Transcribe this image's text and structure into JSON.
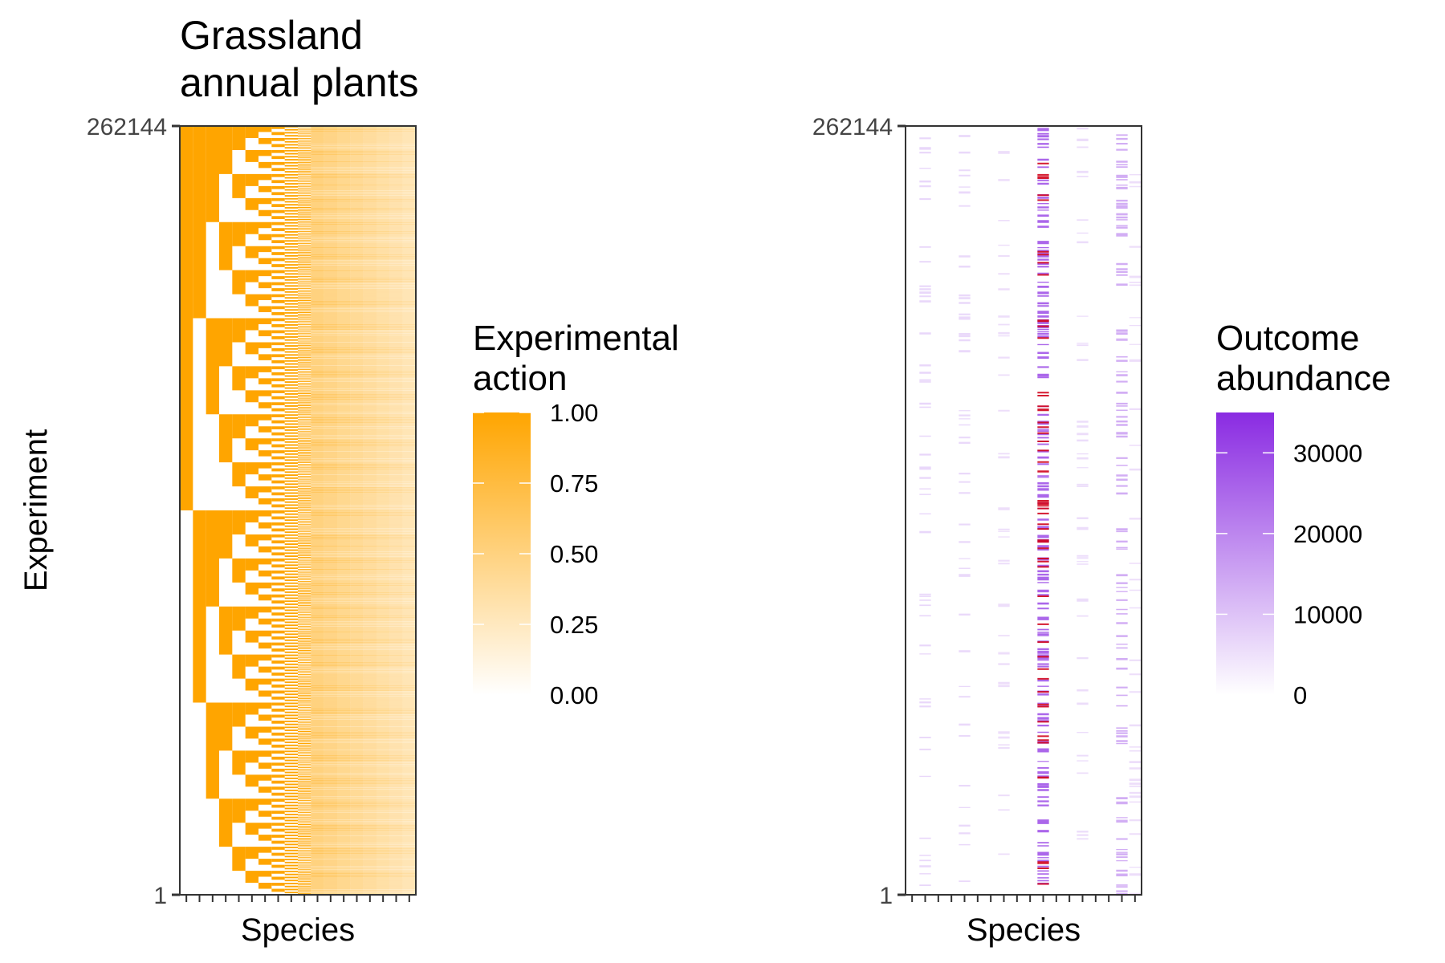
{
  "chart_data": [
    {
      "type": "heatmap",
      "title_lines": [
        "Grassland",
        "annual plants"
      ],
      "xlabel": "Species",
      "ylabel": "Experiment",
      "y_ticks": [
        "1",
        "262144"
      ],
      "y_range": [
        1,
        262144
      ],
      "n_species": 18,
      "design": "full factorial binary presence/absence of 18 species",
      "colors": {
        "low": "#ffffff",
        "high": "#ffa500"
      },
      "legend": {
        "title_lines": [
          "Experimental",
          "action"
        ],
        "range": [
          0,
          1
        ],
        "ticks": [
          "0.00",
          "0.25",
          "0.50",
          "0.75",
          "1.00"
        ],
        "tick_values": [
          0,
          0.25,
          0.5,
          0.75,
          1
        ],
        "placement": "right"
      }
    },
    {
      "type": "heatmap",
      "xlabel": "Species",
      "y_ticks": [
        "1",
        "262144"
      ],
      "y_range": [
        1,
        262144
      ],
      "n_species": 18,
      "colors": {
        "low": "#ffffff",
        "high": "#8a2be2",
        "extreme": "#d0021b"
      },
      "column_mean_abundance": [
        0,
        1500,
        0,
        0,
        1200,
        0,
        0,
        300,
        0,
        0,
        22000,
        0,
        0,
        400,
        0,
        0,
        9000,
        300
      ],
      "legend": {
        "title_lines": [
          "Outcome",
          "abundance"
        ],
        "range": [
          0,
          35000
        ],
        "ticks": [
          "0",
          "10000",
          "20000",
          "30000"
        ],
        "tick_values": [
          0,
          10000,
          20000,
          30000
        ],
        "placement": "right"
      }
    }
  ]
}
